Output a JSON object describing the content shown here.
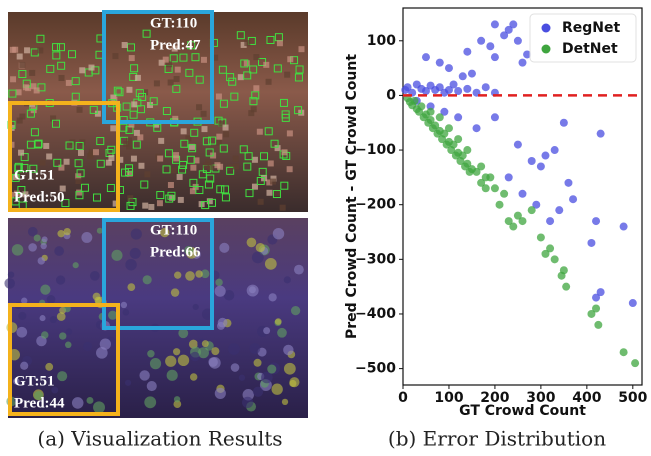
{
  "visualization": {
    "panels": [
      {
        "boxes": [
          {
            "gt": "GT:110",
            "pred": "Pred:47",
            "color": "#2aa6dc"
          },
          {
            "gt": "GT:51",
            "pred": "Pred:50",
            "color": "#f4b21c"
          }
        ]
      },
      {
        "boxes": [
          {
            "gt": "GT:110",
            "pred": "Pred:66",
            "color": "#2aa6dc"
          },
          {
            "gt": "GT:51",
            "pred": "Pred:44",
            "color": "#f4b21c"
          }
        ]
      }
    ]
  },
  "captions": [
    "(a) Visualization Results",
    "(b) Error Distribution"
  ],
  "chart_data": {
    "type": "scatter",
    "xlabel": "GT Crowd Count",
    "ylabel": "Pred Crowd Count - GT Crowd Count",
    "xlim": [
      0,
      520
    ],
    "ylim": [
      -530,
      160
    ],
    "xticks": [
      0,
      100,
      200,
      300,
      400,
      500
    ],
    "yticks": [
      {
        "value": -500,
        "label": "−500"
      },
      {
        "value": -400,
        "label": "−400"
      },
      {
        "value": -300,
        "label": "−300"
      },
      {
        "value": -200,
        "label": "−200"
      },
      {
        "value": -100,
        "label": "−100"
      },
      0,
      100
    ],
    "reference_line": {
      "y": 0,
      "color": "#e02020"
    },
    "legend": "upper right",
    "series": [
      {
        "name": "RegNet",
        "color": "#4a4ee0",
        "x": [
          5,
          10,
          20,
          30,
          40,
          50,
          60,
          70,
          80,
          90,
          100,
          110,
          120,
          140,
          160,
          180,
          200,
          30,
          60,
          90,
          120,
          50,
          80,
          100,
          140,
          170,
          190,
          200,
          220,
          230,
          240,
          250,
          260,
          270,
          200,
          130,
          150,
          160,
          200,
          250,
          280,
          300,
          310,
          330,
          350,
          360,
          370,
          340,
          420,
          430,
          410,
          420,
          430,
          500,
          480,
          290,
          320,
          230,
          260
        ],
        "values": [
          10,
          15,
          5,
          20,
          12,
          8,
          18,
          10,
          15,
          5,
          10,
          20,
          8,
          12,
          5,
          15,
          5,
          -10,
          -20,
          -30,
          -40,
          70,
          60,
          50,
          80,
          100,
          90,
          70,
          110,
          120,
          130,
          100,
          60,
          75,
          130,
          35,
          40,
          -60,
          -40,
          -90,
          -120,
          -130,
          -110,
          -100,
          -50,
          -160,
          -190,
          -210,
          -230,
          -70,
          -270,
          -370,
          -360,
          -380,
          -240,
          -200,
          -230,
          -150,
          -180
        ]
      },
      {
        "name": "DetNet",
        "color": "#3fa53f",
        "x": [
          10,
          15,
          20,
          25,
          30,
          35,
          40,
          45,
          50,
          55,
          60,
          65,
          70,
          75,
          80,
          85,
          90,
          95,
          100,
          105,
          110,
          115,
          120,
          125,
          130,
          135,
          140,
          145,
          150,
          60,
          80,
          100,
          120,
          140,
          160,
          170,
          180,
          180,
          200,
          210,
          230,
          250,
          240,
          280,
          300,
          310,
          320,
          330,
          350,
          355,
          345,
          410,
          420,
          425,
          480,
          505,
          190,
          170,
          220,
          260
        ],
        "values": [
          -5,
          -12,
          -18,
          -10,
          -25,
          -30,
          -20,
          -40,
          -35,
          -50,
          -45,
          -60,
          -55,
          -70,
          -65,
          -80,
          -70,
          -90,
          -85,
          -100,
          -90,
          -110,
          -105,
          -120,
          -110,
          -130,
          -125,
          -140,
          -135,
          -30,
          -40,
          -60,
          -80,
          -100,
          -140,
          -160,
          -170,
          -150,
          -170,
          -200,
          -230,
          -220,
          -240,
          -210,
          -260,
          -290,
          -280,
          -300,
          -320,
          -350,
          -330,
          -400,
          -390,
          -420,
          -470,
          -490,
          -150,
          -130,
          -180,
          -230
        ]
      }
    ]
  }
}
